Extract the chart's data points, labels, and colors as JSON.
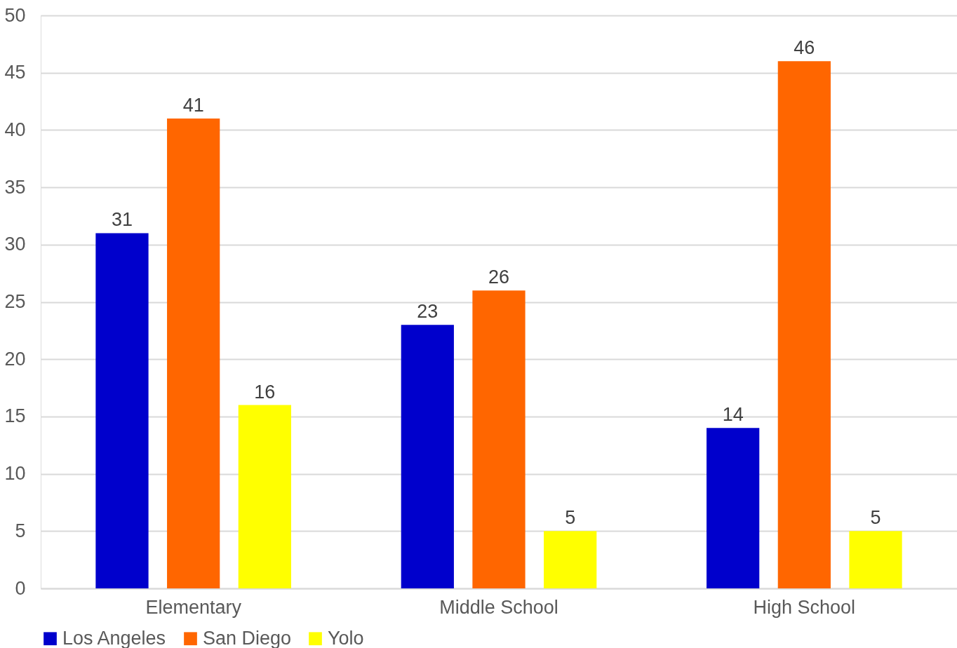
{
  "chart_data": {
    "type": "bar",
    "categories": [
      "Elementary",
      "Middle School",
      "High School"
    ],
    "series": [
      {
        "name": "Los Angeles",
        "color": "#0000cc",
        "values": [
          31,
          23,
          14
        ]
      },
      {
        "name": "San Diego",
        "color": "#ff6600",
        "values": [
          41,
          26,
          46
        ]
      },
      {
        "name": "Yolo",
        "color": "#ffff00",
        "values": [
          16,
          5,
          5
        ]
      }
    ],
    "ylim": [
      0,
      50
    ],
    "yticks": [
      0,
      5,
      10,
      15,
      20,
      25,
      30,
      35,
      40,
      45,
      50
    ],
    "grid": "y",
    "legend": "bottom",
    "data_labels": true
  }
}
